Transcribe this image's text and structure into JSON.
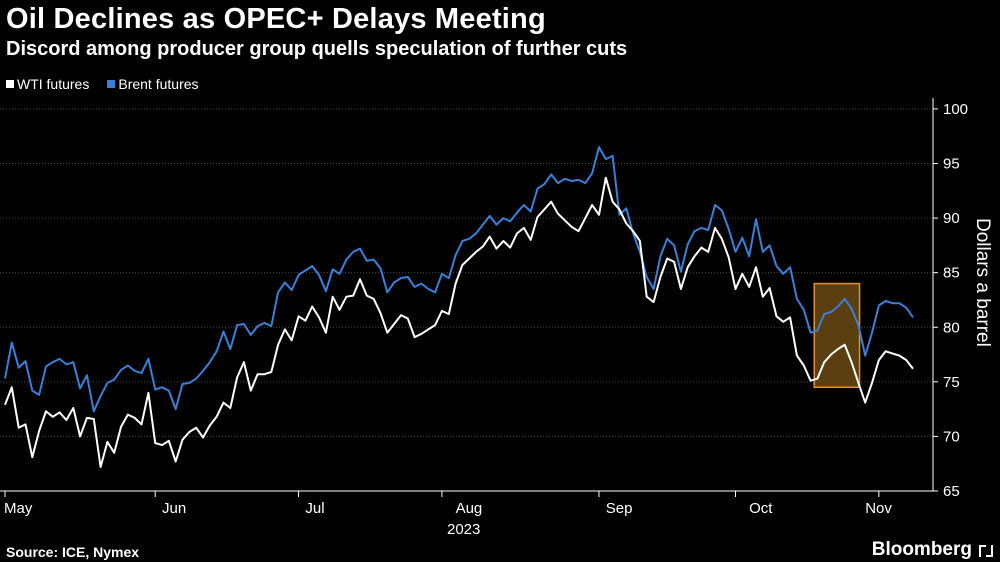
{
  "chart_data": {
    "type": "line",
    "title": "Oil Declines as OPEC+ Delays Meeting",
    "subtitle": "Discord among producer group quells speculation of further cuts",
    "ylabel": "Dollars a barrel",
    "xlabel": "2023",
    "ylim": [
      65,
      101
    ],
    "yticks": [
      65,
      70,
      75,
      80,
      85,
      90,
      95,
      100
    ],
    "xticks": [
      "May",
      "Jun",
      "Jul",
      "Aug",
      "Sep",
      "Oct",
      "Nov"
    ],
    "year_label": "2023",
    "legend_position": "top-left",
    "grid": true,
    "highlight_range": {
      "x_start": 120,
      "x_end": 124,
      "y_low": 74.5,
      "y_high": 84
    },
    "series": [
      {
        "name": "WTI futures",
        "color": "#ffffff",
        "values": [
          72.9,
          74.5,
          70.8,
          71.1,
          68.1,
          70.5,
          72.3,
          71.8,
          72.2,
          71.5,
          72.6,
          70.0,
          71.7,
          71.6,
          67.2,
          69.5,
          68.5,
          70.9,
          72.0,
          71.7,
          71.1,
          74.0,
          69.4,
          69.2,
          69.6,
          67.7,
          69.7,
          70.4,
          70.8,
          69.9,
          71.0,
          71.8,
          73.1,
          72.6,
          75.4,
          76.8,
          74.2,
          75.7,
          75.7,
          75.9,
          78.4,
          79.8,
          78.8,
          81.0,
          80.6,
          81.9,
          80.9,
          79.5,
          82.8,
          81.6,
          82.8,
          82.9,
          84.4,
          82.9,
          82.6,
          81.3,
          79.5,
          80.3,
          81.1,
          80.8,
          79.1,
          79.4,
          79.8,
          80.2,
          81.5,
          81.2,
          84.0,
          85.7,
          86.3,
          86.9,
          87.4,
          88.3,
          87.2,
          87.9,
          87.3,
          88.6,
          89.1,
          88.0,
          90.1,
          90.8,
          91.5,
          90.4,
          89.8,
          89.2,
          88.8,
          90.0,
          91.2,
          90.3,
          93.7,
          91.5,
          90.8,
          89.5,
          88.8,
          87.9,
          82.8,
          82.3,
          84.6,
          86.3,
          86.0,
          83.5,
          85.5,
          86.5,
          87.3,
          86.9,
          89.1,
          88.1,
          86.4,
          83.5,
          84.9,
          83.7,
          85.5,
          82.8,
          83.6,
          81.0,
          80.5,
          80.9,
          77.4,
          76.5,
          75.1,
          75.3,
          76.8,
          77.5,
          78.0,
          78.4,
          76.8,
          74.9,
          73.1,
          74.9,
          77.0,
          77.8,
          77.6,
          77.4,
          77.0,
          76.2
        ]
      },
      {
        "name": "Brent futures",
        "color": "#3a80d9",
        "values": [
          75.3,
          78.6,
          76.3,
          76.9,
          74.2,
          73.8,
          76.4,
          76.8,
          77.1,
          76.6,
          76.8,
          74.4,
          75.6,
          72.3,
          73.7,
          74.9,
          75.2,
          76.1,
          76.5,
          76.0,
          75.8,
          77.1,
          74.3,
          74.5,
          74.2,
          72.5,
          74.8,
          74.9,
          75.3,
          76.0,
          76.8,
          77.8,
          79.6,
          78.0,
          80.2,
          80.3,
          79.3,
          80.1,
          80.4,
          80.1,
          83.2,
          84.1,
          83.4,
          84.8,
          85.2,
          85.6,
          84.8,
          83.3,
          85.3,
          84.9,
          86.2,
          86.9,
          87.2,
          86.1,
          86.2,
          85.4,
          83.2,
          84.1,
          84.5,
          84.6,
          83.7,
          84.0,
          83.5,
          83.2,
          84.9,
          84.5,
          86.6,
          87.9,
          88.1,
          88.6,
          89.4,
          90.2,
          89.4,
          90.0,
          89.7,
          90.5,
          91.2,
          90.6,
          92.7,
          93.1,
          94.0,
          93.2,
          93.6,
          93.4,
          93.5,
          93.2,
          94.1,
          96.5,
          95.4,
          95.7,
          90.3,
          90.9,
          88.6,
          86.9,
          84.6,
          83.5,
          86.5,
          88.1,
          87.5,
          85.1,
          87.6,
          88.8,
          89.1,
          88.9,
          91.2,
          90.7,
          89.0,
          86.9,
          88.2,
          86.5,
          89.9,
          86.9,
          87.5,
          85.6,
          84.9,
          85.5,
          82.6,
          81.6,
          79.5,
          79.7,
          81.2,
          81.4,
          81.9,
          82.6,
          81.7,
          80.2,
          77.4,
          79.5,
          82.0,
          82.4,
          82.2,
          82.2,
          81.8,
          80.9
        ]
      }
    ]
  },
  "source": "Source: ICE, Nymex",
  "brand": "Bloomberg",
  "brand_icon": "bloomberg-terminal-icon"
}
